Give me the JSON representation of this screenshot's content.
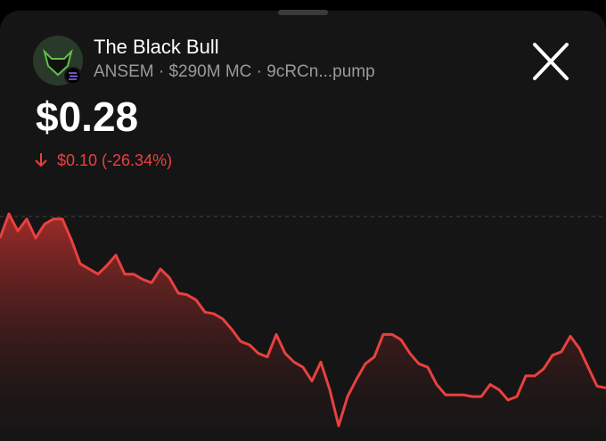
{
  "header": {
    "title": "The Black Bull",
    "subtitle": "ANSEM · $290M MC · 9cRCn...pump",
    "price": "$0.28",
    "change": "$0.10 (-26.34%)"
  },
  "chart_data": {
    "type": "line",
    "color": "#e8413f",
    "values": [
      0.368,
      0.382,
      0.372,
      0.379,
      0.368,
      0.376,
      0.379,
      0.379,
      0.367,
      0.353,
      0.35,
      0.347,
      0.352,
      0.358,
      0.347,
      0.347,
      0.344,
      0.342,
      0.35,
      0.345,
      0.336,
      0.335,
      0.332,
      0.325,
      0.324,
      0.321,
      0.315,
      0.308,
      0.306,
      0.301,
      0.299,
      0.312,
      0.301,
      0.296,
      0.293,
      0.285,
      0.296,
      0.28,
      0.259,
      0.276,
      0.286,
      0.295,
      0.299,
      0.312,
      0.312,
      0.309,
      0.301,
      0.295,
      0.293,
      0.283,
      0.277,
      0.277,
      0.277,
      0.276,
      0.276,
      0.283,
      0.28,
      0.274,
      0.276,
      0.288,
      0.288,
      0.292,
      0.3,
      0.302,
      0.311,
      0.304,
      0.293,
      0.282,
      0.281
    ]
  }
}
